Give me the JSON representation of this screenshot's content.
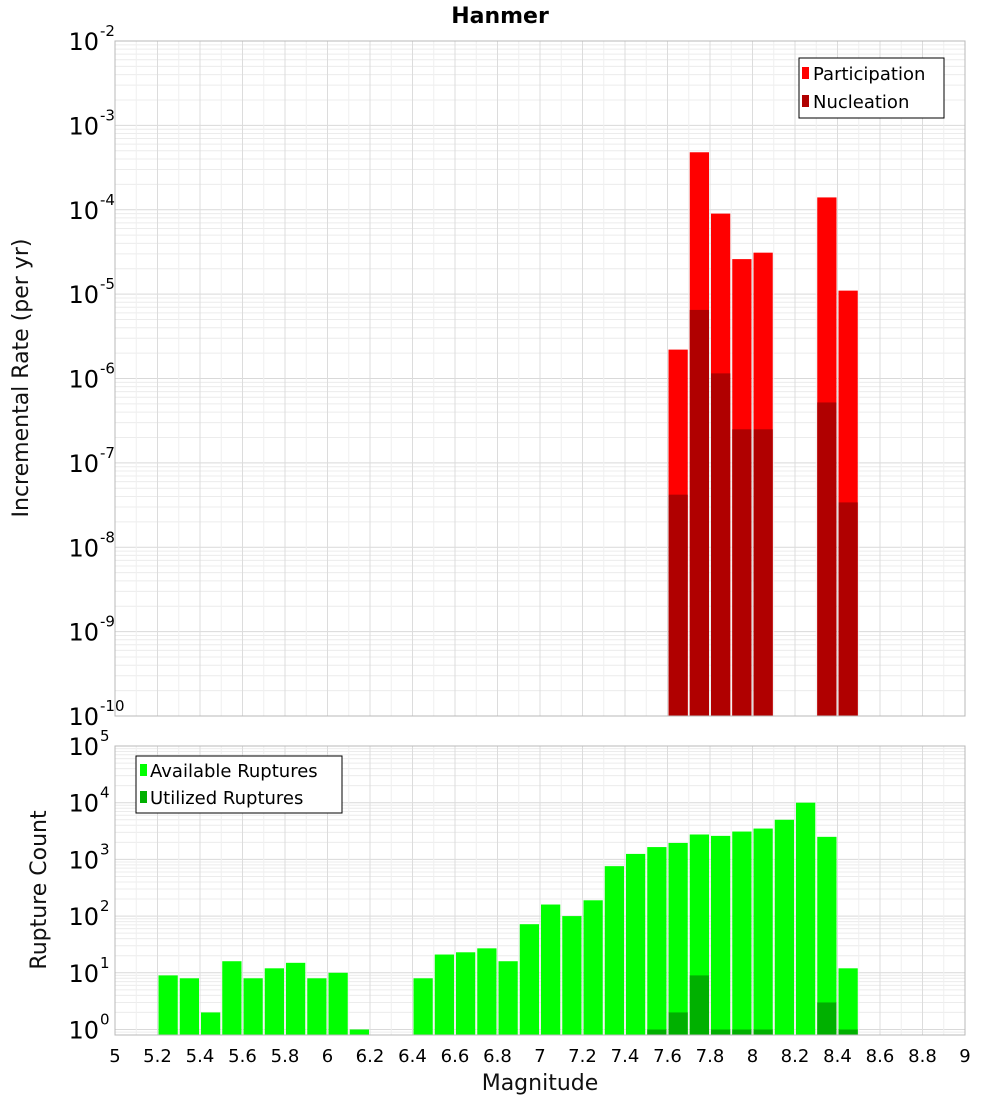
{
  "title": "Hanmer",
  "chart_data": [
    {
      "type": "bar",
      "panel": "top",
      "yscale": "log",
      "ylabel": "Incremental Rate (per yr)",
      "ylim": [
        1e-10,
        0.01
      ],
      "xlim": [
        5,
        9
      ],
      "yticks": [
        {
          "base": "10",
          "exp": "-10"
        },
        {
          "base": "10",
          "exp": "-9"
        },
        {
          "base": "10",
          "exp": "-8"
        },
        {
          "base": "10",
          "exp": "-7"
        },
        {
          "base": "10",
          "exp": "-6"
        },
        {
          "base": "10",
          "exp": "-5"
        },
        {
          "base": "10",
          "exp": "-4"
        },
        {
          "base": "10",
          "exp": "-3"
        },
        {
          "base": "10",
          "exp": "-2"
        }
      ],
      "grid": true,
      "legend_position": "top-right",
      "series": [
        {
          "name": "Participation",
          "color": "#ff0000",
          "x": [
            7.65,
            7.75,
            7.85,
            7.95,
            8.05,
            8.35,
            8.45
          ],
          "values": [
            2.2e-06,
            0.00048,
            9e-05,
            2.6e-05,
            3.1e-05,
            0.00014,
            1.1e-05
          ]
        },
        {
          "name": "Nucleation",
          "color": "#b00000",
          "x": [
            7.65,
            7.75,
            7.85,
            7.95,
            8.05,
            8.35,
            8.45
          ],
          "values": [
            4.2e-08,
            6.5e-06,
            1.15e-06,
            2.5e-07,
            2.5e-07,
            5.2e-07,
            3.4e-08
          ]
        }
      ]
    },
    {
      "type": "bar",
      "panel": "bottom",
      "yscale": "log",
      "ylabel": "Rupture Count",
      "xlabel": "Magnitude",
      "ylim": [
        0.8,
        100000.0
      ],
      "xlim": [
        5,
        9
      ],
      "xticks": [
        "5",
        "5.2",
        "5.4",
        "5.6",
        "5.8",
        "6",
        "6.2",
        "6.4",
        "6.6",
        "6.8",
        "7",
        "7.2",
        "7.4",
        "7.6",
        "7.8",
        "8",
        "8.2",
        "8.4",
        "8.6",
        "8.8",
        "9"
      ],
      "yticks": [
        {
          "base": "10",
          "exp": "0"
        },
        {
          "base": "10",
          "exp": "1"
        },
        {
          "base": "10",
          "exp": "2"
        },
        {
          "base": "10",
          "exp": "3"
        },
        {
          "base": "10",
          "exp": "4"
        },
        {
          "base": "10",
          "exp": "5"
        }
      ],
      "grid": true,
      "legend_position": "top-left",
      "series": [
        {
          "name": "Available Ruptures",
          "color": "#00ff00",
          "x": [
            5.25,
            5.35,
            5.45,
            5.55,
            5.65,
            5.75,
            5.85,
            5.95,
            6.05,
            6.15,
            6.45,
            6.55,
            6.65,
            6.75,
            6.85,
            6.95,
            7.05,
            7.15,
            7.25,
            7.35,
            7.45,
            7.55,
            7.65,
            7.75,
            7.85,
            7.95,
            8.05,
            8.15,
            8.25,
            8.35,
            8.45
          ],
          "values": [
            9,
            8,
            2,
            16,
            8,
            12,
            15,
            8,
            10,
            1,
            8,
            21,
            23,
            27,
            16,
            72,
            160,
            100,
            190,
            760,
            1250,
            1650,
            1950,
            2750,
            2600,
            3100,
            3500,
            5000,
            10000,
            2500,
            12
          ]
        },
        {
          "name": "Utilized Ruptures",
          "color": "#00b000",
          "x": [
            7.55,
            7.65,
            7.75,
            7.85,
            7.95,
            8.05,
            8.35,
            8.45
          ],
          "values": [
            1,
            2,
            9,
            1,
            1,
            1,
            3,
            1
          ]
        }
      ]
    }
  ]
}
